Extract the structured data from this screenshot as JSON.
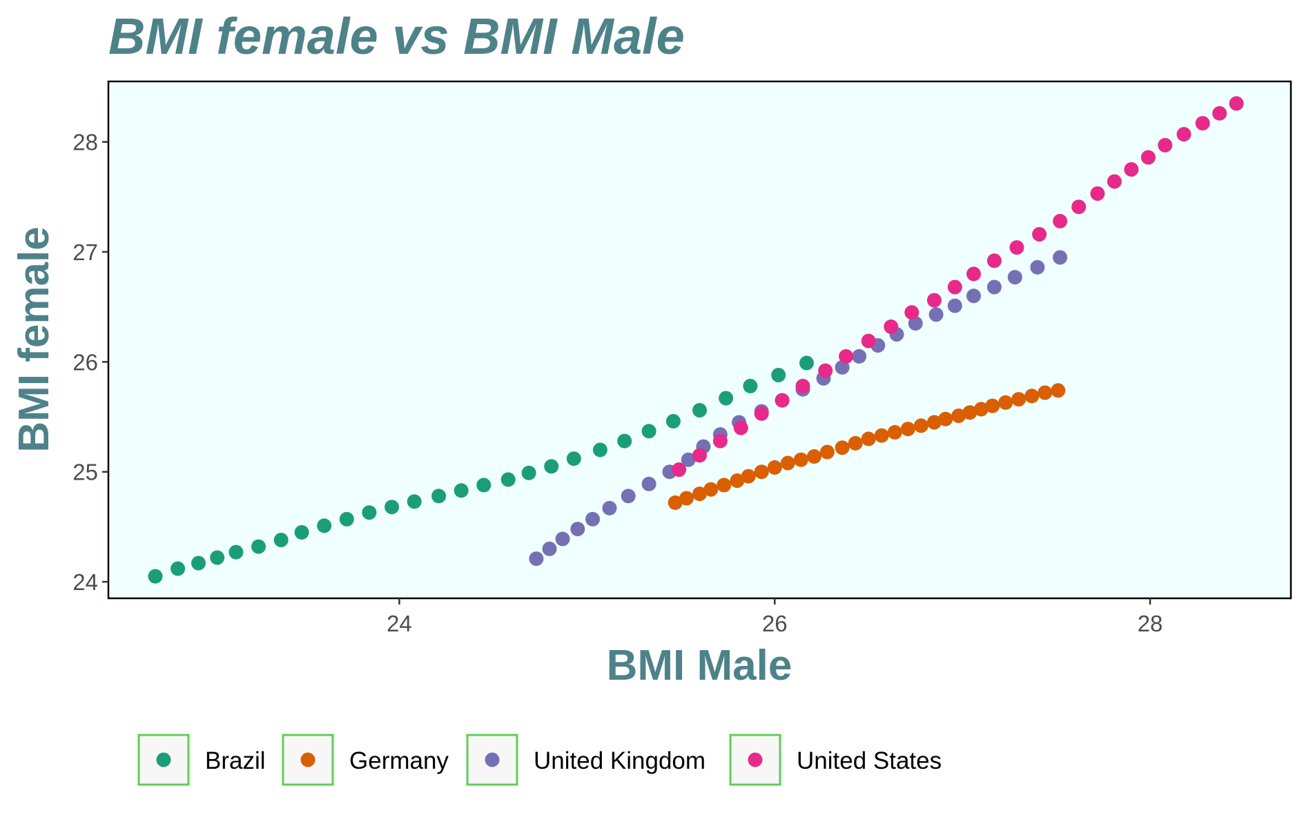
{
  "chart_data": {
    "type": "scatter",
    "title": "BMI female vs BMI Male",
    "xlabel": "BMI Male",
    "ylabel": "BMI female",
    "xlim": [
      22.45,
      28.75
    ],
    "ylim": [
      23.85,
      28.55
    ],
    "x_ticks": [
      24,
      26,
      28
    ],
    "y_ticks": [
      24,
      25,
      26,
      27,
      28
    ],
    "grid": false,
    "panel_background": "#f0ffff",
    "legend_position": "bottom",
    "series": [
      {
        "name": "Brazil",
        "color": "#1b9e77",
        "points": [
          [
            22.7,
            24.05
          ],
          [
            22.82,
            24.12
          ],
          [
            22.93,
            24.17
          ],
          [
            23.03,
            24.22
          ],
          [
            23.13,
            24.27
          ],
          [
            23.25,
            24.32
          ],
          [
            23.37,
            24.38
          ],
          [
            23.48,
            24.45
          ],
          [
            23.6,
            24.51
          ],
          [
            23.72,
            24.57
          ],
          [
            23.84,
            24.63
          ],
          [
            23.96,
            24.68
          ],
          [
            24.08,
            24.73
          ],
          [
            24.21,
            24.78
          ],
          [
            24.33,
            24.83
          ],
          [
            24.45,
            24.88
          ],
          [
            24.58,
            24.93
          ],
          [
            24.69,
            24.99
          ],
          [
            24.81,
            25.05
          ],
          [
            24.93,
            25.12
          ],
          [
            25.07,
            25.2
          ],
          [
            25.2,
            25.28
          ],
          [
            25.33,
            25.37
          ],
          [
            25.46,
            25.46
          ],
          [
            25.6,
            25.56
          ],
          [
            25.74,
            25.67
          ],
          [
            25.87,
            25.78
          ],
          [
            26.02,
            25.88
          ],
          [
            26.17,
            25.99
          ]
        ]
      },
      {
        "name": "Germany",
        "color": "#d95f02",
        "points": [
          [
            25.47,
            24.72
          ],
          [
            25.53,
            24.76
          ],
          [
            25.6,
            24.8
          ],
          [
            25.66,
            24.84
          ],
          [
            25.73,
            24.88
          ],
          [
            25.8,
            24.92
          ],
          [
            25.86,
            24.96
          ],
          [
            25.93,
            25.0
          ],
          [
            26.0,
            25.04
          ],
          [
            26.07,
            25.08
          ],
          [
            26.14,
            25.11
          ],
          [
            26.21,
            25.14
          ],
          [
            26.28,
            25.18
          ],
          [
            26.36,
            25.22
          ],
          [
            26.43,
            25.26
          ],
          [
            26.5,
            25.3
          ],
          [
            26.57,
            25.33
          ],
          [
            26.64,
            25.36
          ],
          [
            26.71,
            25.39
          ],
          [
            26.78,
            25.42
          ],
          [
            26.85,
            25.45
          ],
          [
            26.91,
            25.48
          ],
          [
            26.98,
            25.51
          ],
          [
            27.04,
            25.54
          ],
          [
            27.1,
            25.57
          ],
          [
            27.16,
            25.6
          ],
          [
            27.23,
            25.63
          ],
          [
            27.3,
            25.66
          ],
          [
            27.37,
            25.69
          ],
          [
            27.44,
            25.72
          ],
          [
            27.51,
            25.74
          ]
        ]
      },
      {
        "name": "United Kingdom",
        "color": "#7570b3",
        "points": [
          [
            24.73,
            24.21
          ],
          [
            24.8,
            24.3
          ],
          [
            24.87,
            24.39
          ],
          [
            24.95,
            24.48
          ],
          [
            25.03,
            24.57
          ],
          [
            25.12,
            24.67
          ],
          [
            25.22,
            24.78
          ],
          [
            25.33,
            24.89
          ],
          [
            25.44,
            25.0
          ],
          [
            25.54,
            25.11
          ],
          [
            25.62,
            25.23
          ],
          [
            25.71,
            25.34
          ],
          [
            25.81,
            25.45
          ],
          [
            25.93,
            25.55
          ],
          [
            26.04,
            25.65
          ],
          [
            26.15,
            25.75
          ],
          [
            26.26,
            25.85
          ],
          [
            26.36,
            25.95
          ],
          [
            26.45,
            26.05
          ],
          [
            26.55,
            26.15
          ],
          [
            26.65,
            26.25
          ],
          [
            26.75,
            26.35
          ],
          [
            26.86,
            26.43
          ],
          [
            26.96,
            26.51
          ],
          [
            27.06,
            26.6
          ],
          [
            27.17,
            26.68
          ],
          [
            27.28,
            26.77
          ],
          [
            27.4,
            26.86
          ],
          [
            27.52,
            26.95
          ]
        ]
      },
      {
        "name": "United States",
        "color": "#e7298a",
        "points": [
          [
            25.49,
            25.02
          ],
          [
            25.6,
            25.15
          ],
          [
            25.71,
            25.28
          ],
          [
            25.82,
            25.4
          ],
          [
            25.93,
            25.53
          ],
          [
            26.04,
            25.65
          ],
          [
            26.15,
            25.78
          ],
          [
            26.27,
            25.92
          ],
          [
            26.38,
            26.05
          ],
          [
            26.5,
            26.19
          ],
          [
            26.62,
            26.32
          ],
          [
            26.73,
            26.45
          ],
          [
            26.85,
            26.56
          ],
          [
            26.96,
            26.68
          ],
          [
            27.06,
            26.8
          ],
          [
            27.17,
            26.92
          ],
          [
            27.29,
            27.04
          ],
          [
            27.41,
            27.16
          ],
          [
            27.52,
            27.28
          ],
          [
            27.62,
            27.41
          ],
          [
            27.72,
            27.53
          ],
          [
            27.81,
            27.64
          ],
          [
            27.9,
            27.75
          ],
          [
            27.99,
            27.86
          ],
          [
            28.08,
            27.97
          ],
          [
            28.18,
            28.07
          ],
          [
            28.28,
            28.17
          ],
          [
            28.37,
            28.26
          ],
          [
            28.46,
            28.35
          ]
        ]
      }
    ]
  }
}
